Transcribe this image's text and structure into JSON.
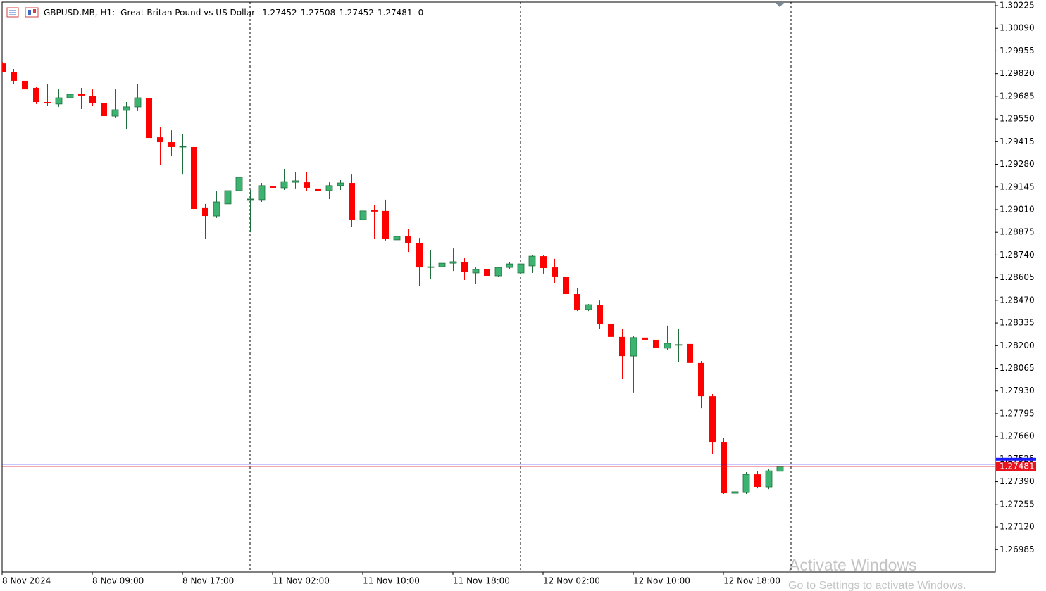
{
  "chart_data": {
    "type": "candlestick",
    "title": "GBPUSD.MB, H1:",
    "subtitle": "Great Britan Pound vs US Dollar",
    "header_values": [
      1.27452,
      1.27508,
      1.27452,
      1.27481,
      0
    ],
    "categories": [
      "8 Nov 2024",
      null,
      null,
      null,
      null,
      null,
      null,
      null,
      "8 Nov 09:00",
      null,
      null,
      null,
      null,
      null,
      null,
      null,
      "8 Nov 17:00",
      null,
      null,
      null,
      null,
      null,
      null,
      null,
      "11 Nov 02:00",
      null,
      null,
      null,
      null,
      null,
      null,
      null,
      "11 Nov 10:00",
      null,
      null,
      null,
      null,
      null,
      null,
      null,
      "11 Nov 18:00",
      null,
      null,
      null,
      null,
      null,
      null,
      null,
      "12 Nov 02:00",
      null,
      null,
      null,
      null,
      null,
      null,
      null,
      "12 Nov 10:00",
      null,
      null,
      null,
      null,
      null,
      null,
      null,
      "12 Nov 18:00",
      null,
      null,
      null,
      null,
      null
    ],
    "open": [
      1.29881,
      1.29831,
      1.29777,
      1.29735,
      1.29651,
      1.29639,
      1.29676,
      1.29701,
      1.29685,
      1.29643,
      1.29567,
      1.29601,
      1.29622,
      1.29676,
      1.29441,
      1.29412,
      1.29383,
      1.29383,
      1.29023,
      1.28972,
      1.29044,
      1.29123,
      1.29073,
      1.29069,
      1.29148,
      1.2914,
      1.29173,
      1.29173,
      1.29136,
      1.29123,
      1.29153,
      1.29169,
      1.28951,
      1.29006,
      1.29002,
      1.2883,
      1.28851,
      1.28809,
      1.28666,
      1.2867,
      1.28691,
      1.28696,
      1.28633,
      1.28654,
      1.28616,
      1.28666,
      1.28633,
      1.28675,
      1.28733,
      1.28666,
      1.28612,
      1.28507,
      1.28415,
      1.28444,
      1.28327,
      1.28252,
      1.28138,
      1.28248,
      1.28235,
      1.28185,
      1.28206,
      1.2821,
      1.28097,
      1.27899,
      1.27627,
      1.27321,
      1.27325,
      1.27434,
      1.27359,
      1.27452
    ],
    "high": [
      1.29889,
      1.29848,
      1.29785,
      1.29743,
      1.29756,
      1.29726,
      1.29726,
      1.29735,
      1.29726,
      1.29676,
      1.29726,
      1.29651,
      1.2976,
      1.29685,
      1.295,
      1.29483,
      1.29462,
      1.2945,
      1.29044,
      1.29119,
      1.29161,
      1.29241,
      1.29127,
      1.29169,
      1.29194,
      1.29253,
      1.29232,
      1.29232,
      1.29148,
      1.29173,
      1.29186,
      1.29219,
      1.29039,
      1.29039,
      1.29069,
      1.28884,
      1.28897,
      1.28842,
      1.28771,
      1.28763,
      1.28779,
      1.28721,
      1.28666,
      1.2867,
      1.2867,
      1.287,
      1.28717,
      1.28742,
      1.28738,
      1.28717,
      1.28624,
      1.28545,
      1.28448,
      1.28469,
      1.28327,
      1.28298,
      1.28256,
      1.2826,
      1.28277,
      1.28319,
      1.28298,
      1.28239,
      1.28109,
      1.27912,
      1.27652,
      1.27342,
      1.27447,
      1.27455,
      1.27468,
      1.27508
    ],
    "low": [
      1.29831,
      1.29756,
      1.29643,
      1.29639,
      1.2963,
      1.29622,
      1.2966,
      1.29609,
      1.2963,
      1.29349,
      1.29555,
      1.29487,
      1.29597,
      1.29387,
      1.29274,
      1.29328,
      1.29219,
      1.2901,
      1.28834,
      1.2896,
      1.29023,
      1.29098,
      1.28875,
      1.29056,
      1.29085,
      1.29127,
      1.29136,
      1.29119,
      1.2901,
      1.29073,
      1.29127,
      1.28909,
      1.28875,
      1.28834,
      1.28826,
      1.28771,
      1.28758,
      1.28557,
      1.28599,
      1.2857,
      1.28645,
      1.28591,
      1.2857,
      1.28603,
      1.28612,
      1.28658,
      1.28616,
      1.28633,
      1.28629,
      1.28574,
      1.28486,
      1.28406,
      1.28406,
      1.28302,
      1.28147,
      1.28004,
      1.27921,
      1.2813,
      1.28046,
      1.28172,
      1.28101,
      1.28038,
      1.27828,
      1.27556,
      1.27317,
      1.27187,
      1.27317,
      1.2735,
      1.27346,
      1.27452
    ],
    "close": [
      1.29831,
      1.29777,
      1.29726,
      1.29651,
      1.29643,
      1.29676,
      1.29697,
      1.29689,
      1.29643,
      1.29567,
      1.29605,
      1.29622,
      1.29676,
      1.29437,
      1.29412,
      1.29383,
      1.29387,
      1.29014,
      1.28972,
      1.29056,
      1.29123,
      1.29203,
      1.29073,
      1.29153,
      1.2914,
      1.29177,
      1.29182,
      1.2914,
      1.29123,
      1.29153,
      1.29169,
      1.28951,
      1.29002,
      1.28998,
      1.28834,
      1.28851,
      1.28809,
      1.28666,
      1.2867,
      1.28691,
      1.287,
      1.28641,
      1.28654,
      1.28616,
      1.28666,
      1.28687,
      1.28687,
      1.28733,
      1.28662,
      1.28612,
      1.28507,
      1.28415,
      1.28444,
      1.28327,
      1.28252,
      1.28138,
      1.28248,
      1.28235,
      1.28185,
      1.28214,
      1.28206,
      1.28097,
      1.27899,
      1.27627,
      1.27321,
      1.2733,
      1.27434,
      1.27359,
      1.27455,
      1.27481
    ],
    "up_color": "#3cb371",
    "down_color": "#ff0000",
    "bid": 1.27481,
    "ask": 1.27494,
    "bid_color": "#e8141e",
    "ask_color": "#1a1aff",
    "ylim": [
      1.26852,
      1.30246
    ],
    "yticks": [
      1.30225,
      {
        "value": 1.3009,
        "label": "1.30090"
      },
      1.29955,
      {
        "value": 1.2982,
        "label": "1.29820"
      },
      1.29685,
      {
        "value": 1.2955,
        "label": "1.29550"
      },
      1.29415,
      {
        "value": 1.2928,
        "label": "1.29280"
      },
      1.29145,
      {
        "value": 1.2901,
        "label": "1.29010"
      },
      1.28875,
      {
        "value": 1.2874,
        "label": "1.28740"
      },
      1.28605,
      {
        "value": 1.2847,
        "label": "1.28470"
      },
      1.28335,
      {
        "value": 1.282,
        "label": "1.28200"
      },
      1.28065,
      {
        "value": 1.2793,
        "label": "1.27930"
      },
      1.27795,
      {
        "value": 1.2766,
        "label": "1.27660"
      },
      1.27525,
      {
        "value": 1.2739,
        "label": "1.27390"
      },
      1.27255,
      {
        "value": 1.2712,
        "label": "1.27120"
      },
      1.26985
    ],
    "grid": false
  },
  "watermark": {
    "title": "Activate Windows",
    "text": "Go to Settings to activate Windows."
  }
}
